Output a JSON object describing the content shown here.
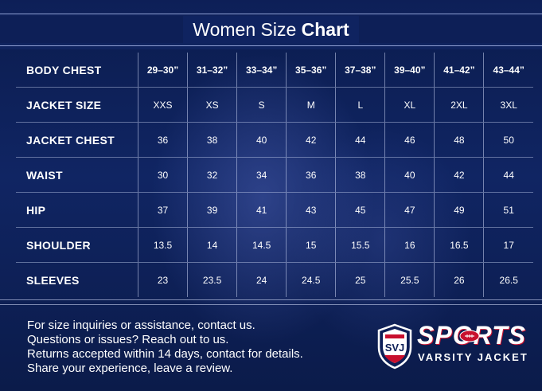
{
  "title": {
    "light": "Women Size",
    "bold": "Chart"
  },
  "table": {
    "header": {
      "label": "BODY CHEST",
      "values": [
        "29–30”",
        "31–32”",
        "33–34”",
        "35–36”",
        "37–38”",
        "39–40”",
        "41–42”",
        "43–44”"
      ]
    },
    "rows": [
      {
        "label": "JACKET SIZE",
        "values": [
          "XXS",
          "XS",
          "S",
          "M",
          "L",
          "XL",
          "2XL",
          "3XL"
        ]
      },
      {
        "label": "JACKET CHEST",
        "values": [
          "36",
          "38",
          "40",
          "42",
          "44",
          "46",
          "48",
          "50"
        ]
      },
      {
        "label": "WAIST",
        "values": [
          "30",
          "32",
          "34",
          "36",
          "38",
          "40",
          "42",
          "44"
        ]
      },
      {
        "label": "HIP",
        "values": [
          "37",
          "39",
          "41",
          "43",
          "45",
          "47",
          "49",
          "51"
        ]
      },
      {
        "label": "SHOULDER",
        "values": [
          "13.5",
          "14",
          "14.5",
          "15",
          "15.5",
          "16",
          "16.5",
          "17"
        ]
      },
      {
        "label": "SLEEVES",
        "values": [
          "23",
          "23.5",
          "24",
          "24.5",
          "25",
          "25.5",
          "26",
          "26.5"
        ]
      }
    ]
  },
  "footer": {
    "lines": [
      "For size inquiries or assistance, contact us.",
      "Questions or issues? Reach out to us.",
      "Returns accepted within 14 days, contact for details.",
      "Share your experience, leave a review."
    ]
  },
  "logo": {
    "shield_text": "SVJ",
    "word_1": "SPORTS",
    "word_2": "VARSITY JACKET",
    "colors": {
      "red": "#c8102e",
      "navy": "#0d1f57",
      "white": "#ffffff"
    },
    "icons": [
      "shield-icon",
      "football-icon"
    ]
  }
}
